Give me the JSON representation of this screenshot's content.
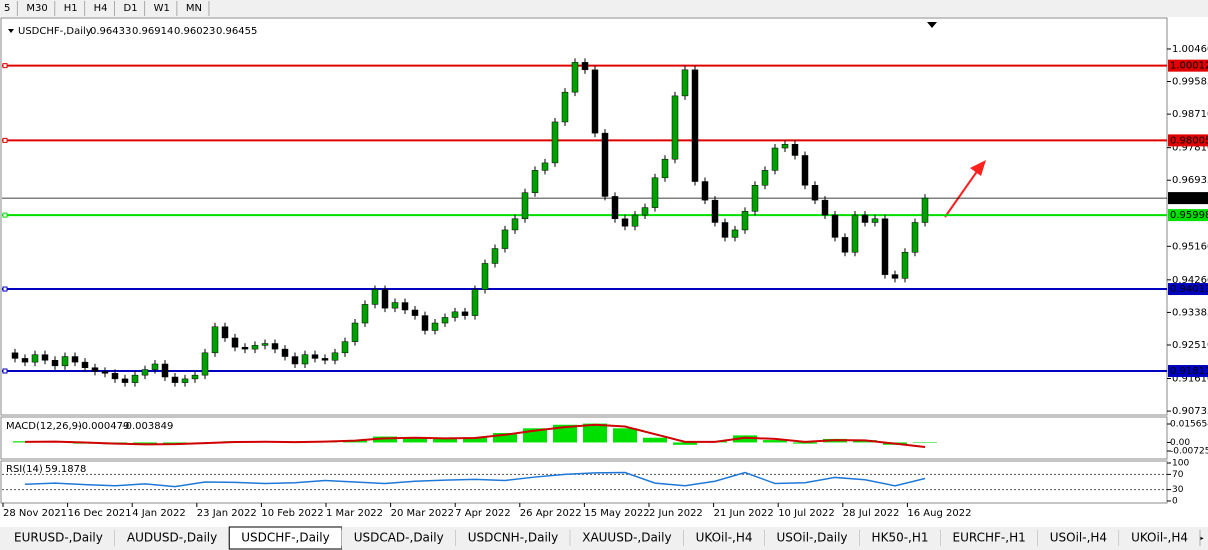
{
  "toolbar": [
    "5",
    "M30",
    "H1",
    "H4",
    "D1",
    "W1",
    "MN"
  ],
  "tabs": [
    "EURUSD-,Daily",
    "AUDUSD-,Daily",
    "USDCHF-,Daily",
    "USDCAD-,Daily",
    "USDCNH-,Daily",
    "XAUUSD-,Daily",
    "UKOil-,H4",
    "USOil-,Daily",
    "HK50-,H1",
    "EURCHF-,H1",
    "USOil-,H4",
    "UKOil-,H4"
  ],
  "chart_data": {
    "type": "candlestick",
    "symbol": "USDCHF-,Daily",
    "open": 0.96433,
    "high": 0.96914,
    "low": 0.96023,
    "close": 0.96455,
    "ylim": [
      0.9063,
      1.0105
    ],
    "yticks": [
      {
        "value": 1.0046,
        "label": "1.00460"
      },
      0.99585,
      {
        "value": 0.9871,
        "label": "0.98710"
      },
      {
        "value": 0.9781,
        "label": "0.97810"
      },
      0.96935,
      {
        "value": 0.9516,
        "label": "0.95160"
      },
      {
        "value": 0.9426,
        "label": "0.94260"
      },
      0.93385,
      {
        "value": 0.9251,
        "label": "0.92510"
      },
      {
        "value": 0.9161,
        "label": "0.91610"
      },
      0.90735
    ],
    "x_labels": [
      "28 Nov 2021",
      "16 Dec 2021",
      "4 Jan 2022",
      "23 Jan 2022",
      "10 Feb 2022",
      "1 Mar 2022",
      "20 Mar 2022",
      "7 Apr 2022",
      "26 Apr 2022",
      "15 May 2022",
      "2 Jun 2022",
      "21 Jun 2022",
      "10 Jul 2022",
      "28 Jul 2022",
      "16 Aug 2022"
    ],
    "closes": [
      0.923,
      0.9215,
      0.9205,
      0.9225,
      0.921,
      0.9195,
      0.922,
      0.9205,
      0.919,
      0.918,
      0.9175,
      0.916,
      0.915,
      0.917,
      0.9185,
      0.92,
      0.9165,
      0.915,
      0.916,
      0.917,
      0.923,
      0.93,
      0.927,
      0.9245,
      0.924,
      0.925,
      0.9255,
      0.924,
      0.922,
      0.92,
      0.9225,
      0.9215,
      0.921,
      0.923,
      0.926,
      0.931,
      0.936,
      0.94,
      0.935,
      0.9365,
      0.9345,
      0.933,
      0.929,
      0.931,
      0.9325,
      0.934,
      0.933,
      0.94,
      0.947,
      0.951,
      0.956,
      0.959,
      0.966,
      0.972,
      0.974,
      0.985,
      0.993,
      1.001,
      0.999,
      0.982,
      0.965,
      0.959,
      0.957,
      0.96,
      0.962,
      0.97,
      0.975,
      0.992,
      0.999,
      0.969,
      0.964,
      0.958,
      0.954,
      0.956,
      0.961,
      0.968,
      0.972,
      0.978,
      0.979,
      0.976,
      0.968,
      0.964,
      0.96,
      0.954,
      0.95,
      0.96,
      0.958,
      0.959,
      0.944,
      0.943,
      0.95,
      0.958,
      0.96455
    ],
    "bull_color": "#00a000",
    "bear_color": "#000000",
    "levels": [
      {
        "value": 1.00012,
        "color": "#e00000"
      },
      {
        "value": 0.98005,
        "color": "#e00000"
      },
      {
        "value": 0.95998,
        "color": "#00e000"
      },
      {
        "value": 0.94013,
        "color": "#0000c0"
      },
      {
        "value": 0.91811,
        "color": "#0000c0"
      }
    ],
    "macd": {
      "name": "MACD(12,26,9)",
      "main": -0.000479,
      "signal_value": -0.003849,
      "ylim": [
        -0.0132,
        0.0199
      ],
      "yticks": [
        0.015654,
        {
          "value": 0,
          "label": "0.00"
        },
        -0.007259
      ],
      "histogram": [
        0.001,
        0.0005,
        -0.001,
        -0.0015,
        -0.002,
        -0.001,
        0,
        0.001,
        0.0005,
        0,
        0.001,
        0.002,
        0.005,
        0.004,
        0.003,
        0.004,
        0.008,
        0.012,
        0.015,
        0.016,
        0.012,
        0.004,
        -0.002,
        0.001,
        0.006,
        0.002,
        -0.001,
        0.003,
        0.002,
        -0.002,
        -0.000479
      ],
      "signal": [
        0.0005,
        0.0007,
        0,
        -0.001,
        -0.0016,
        -0.0014,
        -0.0006,
        0.0004,
        0.0006,
        0.0003,
        0.0007,
        0.0015,
        0.0035,
        0.004,
        0.0035,
        0.0038,
        0.0065,
        0.01,
        0.013,
        0.015,
        0.0135,
        0.007,
        0.0005,
        0.0005,
        0.004,
        0.003,
        0.0005,
        0.002,
        0.0018,
        -0.001,
        -0.003849
      ],
      "hist_color": "#00e000",
      "signal_color": "#d00000"
    },
    "rsi": {
      "name": "RSI(14)",
      "value": 59.1878,
      "ylim": [
        0,
        100
      ],
      "yticks": [
        100,
        70,
        30,
        0
      ],
      "values": [
        44,
        47,
        43,
        40,
        45,
        38,
        50,
        49,
        46,
        48,
        54,
        50,
        46,
        52,
        55,
        57,
        54,
        63,
        70,
        74,
        75,
        47,
        40,
        52,
        75,
        46,
        48,
        62,
        56,
        40,
        59.1878
      ],
      "color": "#1e78d8"
    }
  }
}
